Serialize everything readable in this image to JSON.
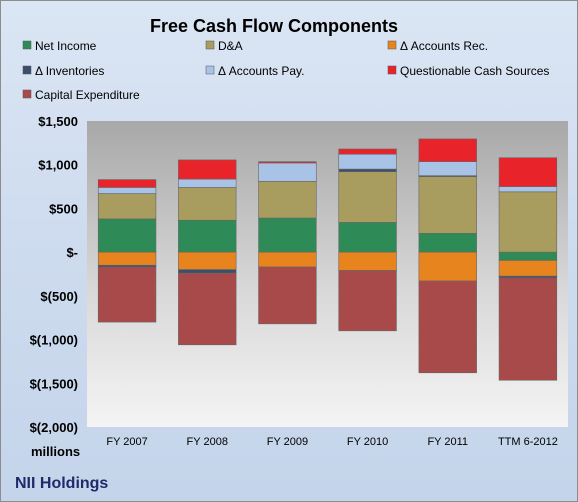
{
  "chart_data": {
    "type": "bar",
    "title": "Free Cash Flow Components",
    "categories": [
      "FY 2007",
      "FY 2008",
      "FY 2009",
      "FY 2010",
      "FY 2011",
      "TTM 6-2012"
    ],
    "ylim": [
      -2000,
      1500
    ],
    "yticks": [
      1500,
      1000,
      500,
      0,
      -500,
      -1000,
      -1500,
      -2000
    ],
    "ytick_labels": [
      "$1,500",
      "$1,000",
      "$500",
      "$-",
      "$(500)",
      "$(1,000)",
      "$(1,500)",
      "$(2,000)"
    ],
    "ylabel": "",
    "unit_label": "millions",
    "footer": "NII Holdings",
    "grid": false,
    "legend_position": "top",
    "series": [
      {
        "name": "Net Income",
        "color": "#2e8b57",
        "values": [
          380,
          365,
          390,
          340,
          215,
          -95
        ]
      },
      {
        "name": "D&A",
        "color": "#a89c5e",
        "values": [
          290,
          375,
          420,
          580,
          650,
          690
        ]
      },
      {
        "name": "Δ Accounts Rec.",
        "color": "#e8841e",
        "values": [
          -150,
          -200,
          -170,
          -210,
          -330,
          -180
        ]
      },
      {
        "name": "Δ Inventories",
        "color": "#3a4e6e",
        "values": [
          -20,
          -40,
          0,
          30,
          10,
          -20
        ]
      },
      {
        "name": "Δ Accounts Pay.",
        "color": "#a8c3e6",
        "values": [
          70,
          95,
          210,
          170,
          160,
          60
        ]
      },
      {
        "name": "Questionable Cash Sources",
        "color": "#e8242a",
        "values": [
          90,
          220,
          15,
          60,
          260,
          330
        ]
      },
      {
        "name": "Capital Expenditure",
        "color": "#a84a4a",
        "values": [
          -630,
          -820,
          -650,
          -690,
          -1050,
          -1170
        ]
      }
    ]
  }
}
